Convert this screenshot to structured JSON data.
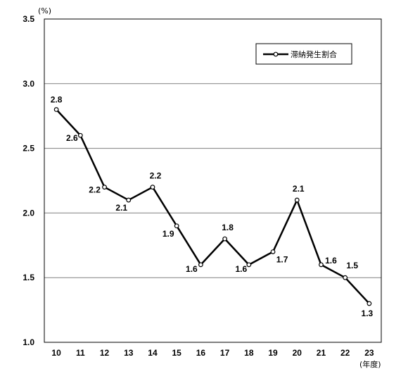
{
  "chart_data": {
    "type": "line",
    "title": "",
    "xlabel": "",
    "ylabel": "",
    "y_unit": "(%)",
    "x_unit": "(年度)",
    "categories": [
      "10",
      "11",
      "12",
      "13",
      "14",
      "15",
      "16",
      "17",
      "18",
      "19",
      "20",
      "21",
      "22",
      "23"
    ],
    "series": [
      {
        "name": "滞納発生割合",
        "values": [
          2.8,
          2.6,
          2.2,
          2.1,
          2.2,
          1.9,
          1.6,
          1.8,
          1.6,
          1.7,
          2.1,
          1.6,
          1.5,
          1.3
        ],
        "labels": [
          "2.8",
          "2.6",
          "2.2",
          "2.1",
          "2.2",
          "1.9",
          "1.6",
          "1.8",
          "1.6",
          "1.7",
          "2.1",
          "1.6",
          "1.5",
          "1.3"
        ]
      }
    ],
    "yticks": [
      "1.0",
      "1.5",
      "2.0",
      "2.5",
      "3.0",
      "3.5"
    ],
    "ylim": [
      1.0,
      3.5
    ],
    "grid": true,
    "legend": "top-right",
    "colors": {
      "line": "#000000",
      "grid": "#808080",
      "marker_fill": "#ffffff"
    }
  }
}
